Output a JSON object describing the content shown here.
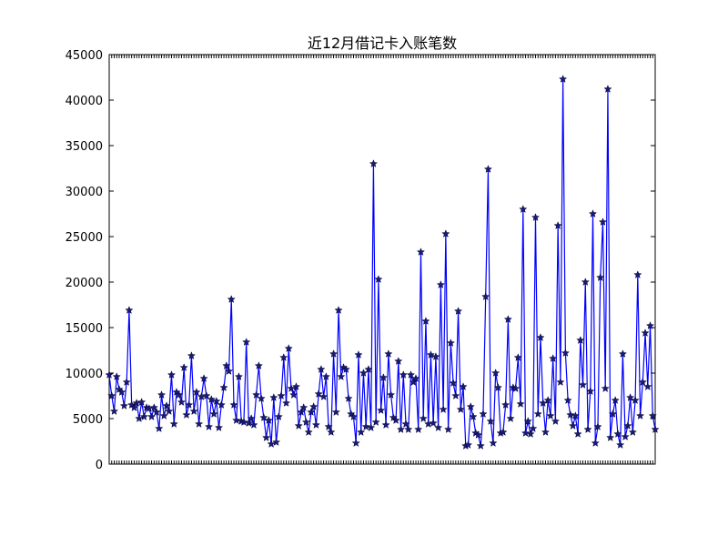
{
  "chart_data": {
    "type": "line",
    "title": "近12月借记卡入账笔数",
    "xlabel": "",
    "ylabel": "",
    "ylim": [
      0,
      45000
    ],
    "yticks": [
      "0",
      "5000",
      "10000",
      "15000",
      "20000",
      "25000",
      "30000",
      "35000",
      "40000",
      "45000"
    ],
    "marker": "star",
    "colors": {
      "line": "#0000ff",
      "marker": "#1a1a7a"
    },
    "legend": "none",
    "grid": false,
    "series": [
      {
        "values": [
          9800,
          7500,
          5800,
          9600,
          8200,
          7900,
          6400,
          9000,
          16900,
          6500,
          6200,
          6700,
          5000,
          6800,
          5200,
          6200,
          6100,
          5200,
          6200,
          5700,
          3900,
          7600,
          5300,
          6400,
          5800,
          9800,
          4400,
          7900,
          7600,
          6800,
          10600,
          5400,
          6500,
          11900,
          5800,
          7900,
          4400,
          7400,
          9400,
          7500,
          4100,
          7100,
          5500,
          6900,
          4000,
          6500,
          8400,
          10800,
          10200,
          18100,
          6500,
          4800,
          9600,
          4700,
          4600,
          13400,
          4500,
          5000,
          4300,
          7600,
          10800,
          7200,
          5100,
          2900,
          4800,
          2200,
          7300,
          2400,
          5200,
          7500,
          11700,
          6700,
          12700,
          8300,
          7600,
          8500,
          4200,
          5700,
          6200,
          4600,
          3500,
          5700,
          6300,
          4300,
          7700,
          10400,
          7400,
          9600,
          4100,
          3500,
          12100,
          5700,
          16900,
          9600,
          10600,
          10400,
          7200,
          5500,
          5200,
          2300,
          12000,
          3500,
          10000,
          4100,
          10400,
          4000,
          33000,
          4600,
          20300,
          5900,
          9500,
          4300,
          12100,
          7600,
          5100,
          4800,
          11300,
          3800,
          9800,
          4400,
          3800,
          9800,
          9000,
          9400,
          3800,
          23300,
          5000,
          15700,
          4400,
          12000,
          4500,
          11800,
          4000,
          19700,
          6000,
          25300,
          3800,
          13300,
          8900,
          7500,
          16800,
          6000,
          8500,
          2000,
          2100,
          6300,
          5200,
          3400,
          3200,
          2000,
          5500,
          18400,
          32400,
          4700,
          2300,
          10000,
          8400,
          3400,
          3500,
          6500,
          15900,
          5000,
          8400,
          8300,
          11700,
          6600,
          28000,
          3400,
          4700,
          3300,
          3900,
          27100,
          5500,
          13900,
          6700,
          3500,
          7000,
          5300,
          11600,
          4700,
          26200,
          9000,
          42300,
          12200,
          7000,
          5400,
          4200,
          5300,
          3300,
          13600,
          8700,
          20000,
          3800,
          8000,
          27500,
          2300,
          4100,
          20500,
          26600,
          8300,
          41200,
          2900,
          5500,
          7000,
          3300,
          2100,
          12100,
          3000,
          4200,
          7300,
          3500,
          7000,
          20800,
          5300,
          9000,
          14400,
          8500,
          15200,
          5300,
          3800
        ]
      }
    ]
  }
}
